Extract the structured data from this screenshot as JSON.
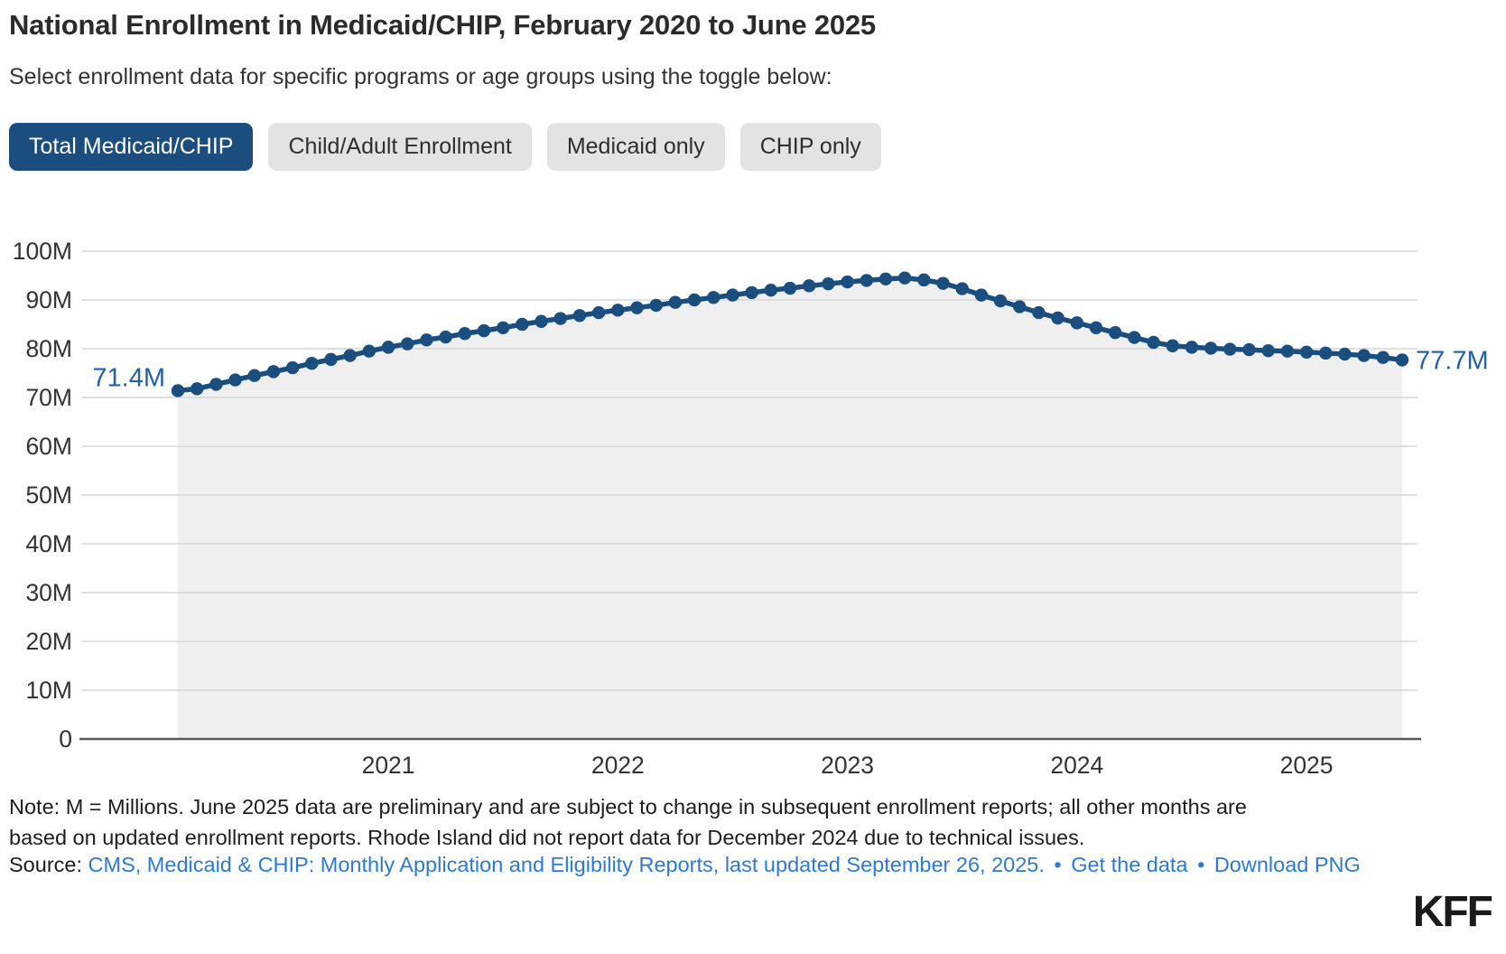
{
  "header": {
    "title": "National Enrollment in Medicaid/CHIP, February 2020 to June 2025",
    "subtitle": "Select enrollment data for specific programs or age groups using the toggle below:"
  },
  "toggle": {
    "buttons": [
      {
        "label": "Total Medicaid/CHIP",
        "active": true
      },
      {
        "label": "Child/Adult Enrollment",
        "active": false
      },
      {
        "label": "Medicaid only",
        "active": false
      },
      {
        "label": "CHIP only",
        "active": false
      }
    ]
  },
  "chart_data": {
    "type": "line",
    "title": "National Enrollment in Medicaid/CHIP",
    "series_name": "Total Medicaid/CHIP enrollment (millions)",
    "x": [
      "2020-02",
      "2020-03",
      "2020-04",
      "2020-05",
      "2020-06",
      "2020-07",
      "2020-08",
      "2020-09",
      "2020-10",
      "2020-11",
      "2020-12",
      "2021-01",
      "2021-02",
      "2021-03",
      "2021-04",
      "2021-05",
      "2021-06",
      "2021-07",
      "2021-08",
      "2021-09",
      "2021-10",
      "2021-11",
      "2021-12",
      "2022-01",
      "2022-02",
      "2022-03",
      "2022-04",
      "2022-05",
      "2022-06",
      "2022-07",
      "2022-08",
      "2022-09",
      "2022-10",
      "2022-11",
      "2022-12",
      "2023-01",
      "2023-02",
      "2023-03",
      "2023-04",
      "2023-05",
      "2023-06",
      "2023-07",
      "2023-08",
      "2023-09",
      "2023-10",
      "2023-11",
      "2023-12",
      "2024-01",
      "2024-02",
      "2024-03",
      "2024-04",
      "2024-05",
      "2024-06",
      "2024-07",
      "2024-08",
      "2024-09",
      "2024-10",
      "2024-11",
      "2024-12",
      "2025-01",
      "2025-02",
      "2025-03",
      "2025-04",
      "2025-05",
      "2025-06"
    ],
    "values": [
      71.4,
      71.8,
      72.7,
      73.6,
      74.5,
      75.3,
      76.1,
      77.0,
      77.8,
      78.6,
      79.5,
      80.3,
      81.0,
      81.8,
      82.4,
      83.1,
      83.7,
      84.3,
      85.0,
      85.6,
      86.2,
      86.8,
      87.4,
      87.9,
      88.4,
      88.9,
      89.5,
      90.0,
      90.5,
      91.0,
      91.5,
      92.0,
      92.4,
      92.9,
      93.3,
      93.7,
      94.0,
      94.3,
      94.5,
      94.1,
      93.4,
      92.3,
      91.0,
      89.8,
      88.6,
      87.4,
      86.3,
      85.3,
      84.3,
      83.3,
      82.3,
      81.3,
      80.6,
      80.3,
      80.1,
      79.9,
      79.8,
      79.6,
      79.5,
      79.3,
      79.1,
      78.9,
      78.6,
      78.2,
      77.7
    ],
    "ylim": [
      0,
      100
    ],
    "yticks": [
      {
        "v": 0,
        "label": "0"
      },
      {
        "v": 10,
        "label": "10M"
      },
      {
        "v": 20,
        "label": "20M"
      },
      {
        "v": 30,
        "label": "30M"
      },
      {
        "v": 40,
        "label": "40M"
      },
      {
        "v": 50,
        "label": "50M"
      },
      {
        "v": 60,
        "label": "60M"
      },
      {
        "v": 70,
        "label": "70M"
      },
      {
        "v": 80,
        "label": "80M"
      },
      {
        "v": 90,
        "label": "90M"
      },
      {
        "v": 100,
        "label": "100M"
      }
    ],
    "xticks": [
      "2021",
      "2022",
      "2023",
      "2024",
      "2025"
    ],
    "first_point_label": "71.4M",
    "last_point_label": "77.7M",
    "grid": true,
    "legend": "none",
    "line_color": "#1a4e7e",
    "area_color": "#efefef",
    "grid_color": "#d6d6d6",
    "axis_color": "#58595b",
    "tick_color": "#333333",
    "label_color": "#2061a8"
  },
  "footer": {
    "note": "Note: M = Millions. June 2025 data are preliminary and are subject to change in subsequent enrollment reports; all other months are based on updated enrollment reports. Rhode Island did not report data for December 2024 due to technical issues.",
    "source_prefix": "Source:",
    "source_link": "CMS, Medicaid & CHIP: Monthly Application and Eligibility Reports, last updated September 26, 2025.",
    "separator": "•",
    "get_data_link": "Get the data",
    "download_link": "Download PNG",
    "logo": "KFF"
  }
}
